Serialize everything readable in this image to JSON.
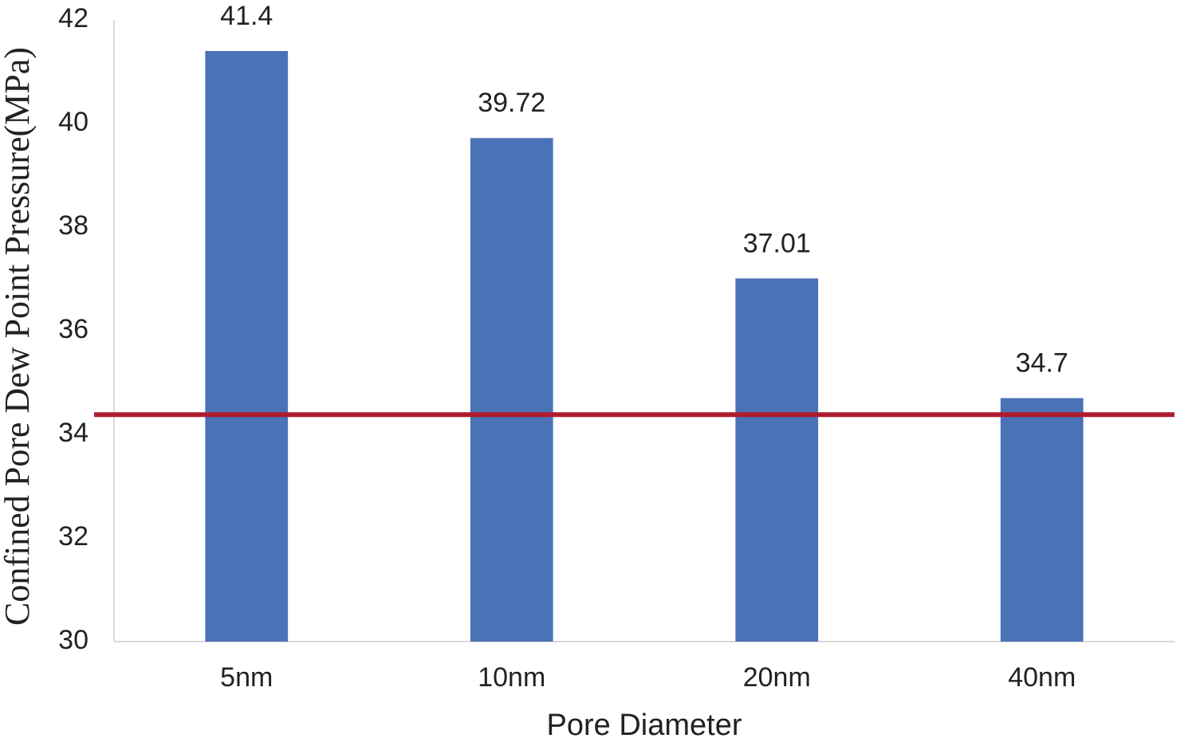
{
  "chart_data": {
    "type": "bar",
    "categories": [
      "5nm",
      "10nm",
      "20nm",
      "40nm"
    ],
    "values": [
      41.4,
      39.72,
      37.01,
      34.7
    ],
    "color": "#4a72b7",
    "ylim": [
      30,
      42
    ],
    "yticks": [
      30,
      32,
      34,
      36,
      38,
      40,
      42
    ],
    "grid": false,
    "x_label": "Pore Diameter",
    "y_label": "Confined Pore Dew Point Pressure(MPa)",
    "reference_line": {
      "value": 34.38,
      "color": "#b01c2e"
    }
  }
}
